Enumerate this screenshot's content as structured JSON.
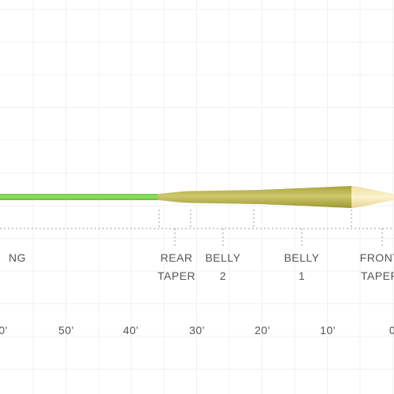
{
  "sections": [
    {
      "lines": [
        "NG"
      ]
    },
    {
      "lines": [
        "REAR",
        "TAPER"
      ]
    },
    {
      "lines": [
        "BELLY",
        "2"
      ]
    },
    {
      "lines": [
        "BELLY",
        "1"
      ]
    },
    {
      "lines": [
        "FRONT",
        "TAPER"
      ]
    }
  ],
  "scale": [
    "0'",
    "50'",
    "40'",
    "30'",
    "20'",
    "10'",
    "0"
  ]
}
